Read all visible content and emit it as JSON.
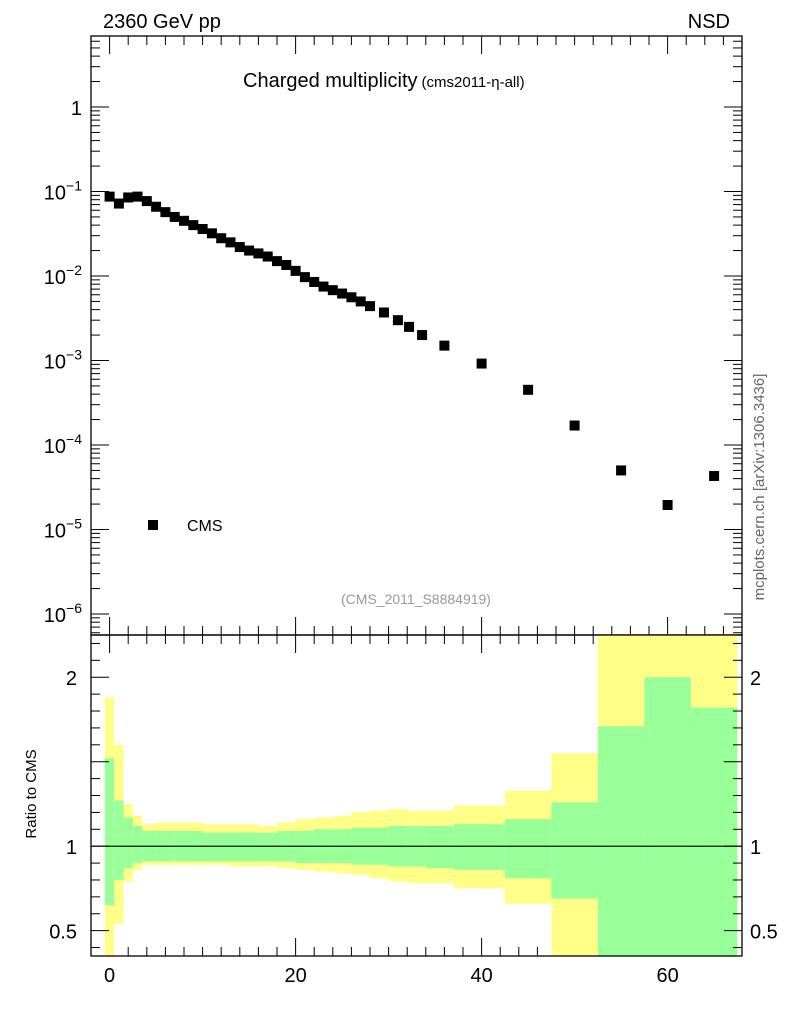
{
  "header": {
    "left": "2360 GeV pp",
    "right": "NSD"
  },
  "side_label": "mcplots.cern.ch [arXiv:1306.3436]",
  "chart_data": {
    "type": "scatter",
    "title": "Charged multiplicity",
    "subtitle": "(cms2011-η-all)",
    "watermark": "(CMS_2011_S8884919)",
    "legend": [
      {
        "label": "CMS",
        "marker": "square",
        "placement": "bottom-left"
      }
    ],
    "upper": {
      "yscale": "log",
      "ylim": [
        5e-07,
        6
      ],
      "xlim": [
        -2,
        68
      ],
      "ytick_labels": [
        "1",
        "10^{-1}",
        "10^{-2}",
        "10^{-3}",
        "10^{-4}",
        "10^{-5}",
        "10^{-6}"
      ],
      "series": [
        {
          "name": "CMS",
          "points": [
            [
              0,
              0.087
            ],
            [
              1,
              0.072
            ],
            [
              2,
              0.085
            ],
            [
              3,
              0.087
            ],
            [
              4,
              0.077
            ],
            [
              5,
              0.066
            ],
            [
              6,
              0.057
            ],
            [
              7,
              0.05
            ],
            [
              8,
              0.045
            ],
            [
              9,
              0.04
            ],
            [
              10,
              0.036
            ],
            [
              11,
              0.032
            ],
            [
              12,
              0.028
            ],
            [
              13,
              0.025
            ],
            [
              14,
              0.022
            ],
            [
              15,
              0.02
            ],
            [
              16,
              0.0185
            ],
            [
              17,
              0.017
            ],
            [
              18,
              0.015
            ],
            [
              19,
              0.0135
            ],
            [
              20,
              0.0115
            ],
            [
              21,
              0.0097
            ],
            [
              22,
              0.0085
            ],
            [
              23,
              0.0075
            ],
            [
              24,
              0.0068
            ],
            [
              25,
              0.0062
            ],
            [
              26,
              0.0056
            ],
            [
              27,
              0.005
            ],
            [
              28,
              0.0044
            ],
            [
              29.5,
              0.0037
            ],
            [
              31,
              0.003
            ],
            [
              32.2,
              0.0025
            ],
            [
              33.6,
              0.002
            ],
            [
              36,
              0.0015
            ],
            [
              40,
              0.00092
            ],
            [
              45,
              0.00045
            ],
            [
              50,
              0.00017
            ],
            [
              55,
              5e-05
            ],
            [
              60,
              1.95e-05
            ],
            [
              65,
              4.3e-05
            ]
          ]
        }
      ]
    },
    "ratio": {
      "ylabel": "Ratio to CMS",
      "ylim": [
        0.35,
        2.25
      ],
      "xlim": [
        -2,
        68
      ],
      "xlabel_ticks": [
        "0",
        "20",
        "40",
        "60"
      ],
      "ytick_labels": [
        "0.5",
        "1",
        "2"
      ],
      "reference": 1,
      "bins": [
        {
          "x0": -0.5,
          "x1": 0.5,
          "inner": [
            0.65,
            1.52
          ],
          "outer": [
            0.35,
            1.88
          ]
        },
        {
          "x0": 0.5,
          "x1": 1.5,
          "inner": [
            0.8,
            1.27
          ],
          "outer": [
            0.54,
            1.6
          ]
        },
        {
          "x0": 1.5,
          "x1": 2.5,
          "inner": [
            0.87,
            1.17
          ],
          "outer": [
            0.79,
            1.25
          ]
        },
        {
          "x0": 2.5,
          "x1": 3.5,
          "inner": [
            0.9,
            1.12
          ],
          "outer": [
            0.86,
            1.18
          ]
        },
        {
          "x0": 3.5,
          "x1": 5,
          "inner": [
            0.91,
            1.09
          ],
          "outer": [
            0.89,
            1.13
          ]
        },
        {
          "x0": 5,
          "x1": 7,
          "inner": [
            0.91,
            1.09
          ],
          "outer": [
            0.89,
            1.14
          ]
        },
        {
          "x0": 7,
          "x1": 10,
          "inner": [
            0.91,
            1.09
          ],
          "outer": [
            0.89,
            1.14
          ]
        },
        {
          "x0": 10,
          "x1": 13,
          "inner": [
            0.91,
            1.08
          ],
          "outer": [
            0.89,
            1.13
          ]
        },
        {
          "x0": 13,
          "x1": 16,
          "inner": [
            0.91,
            1.08
          ],
          "outer": [
            0.88,
            1.13
          ]
        },
        {
          "x0": 16,
          "x1": 18,
          "inner": [
            0.91,
            1.08
          ],
          "outer": [
            0.88,
            1.12
          ]
        },
        {
          "x0": 18,
          "x1": 20,
          "inner": [
            0.91,
            1.09
          ],
          "outer": [
            0.87,
            1.14
          ]
        },
        {
          "x0": 20,
          "x1": 22,
          "inner": [
            0.9,
            1.09
          ],
          "outer": [
            0.86,
            1.16
          ]
        },
        {
          "x0": 22,
          "x1": 24,
          "inner": [
            0.9,
            1.1
          ],
          "outer": [
            0.85,
            1.17
          ]
        },
        {
          "x0": 24,
          "x1": 26,
          "inner": [
            0.9,
            1.1
          ],
          "outer": [
            0.84,
            1.18
          ]
        },
        {
          "x0": 26,
          "x1": 28,
          "inner": [
            0.89,
            1.11
          ],
          "outer": [
            0.83,
            1.2
          ]
        },
        {
          "x0": 28,
          "x1": 30,
          "inner": [
            0.89,
            1.11
          ],
          "outer": [
            0.81,
            1.21
          ]
        },
        {
          "x0": 30,
          "x1": 32,
          "inner": [
            0.88,
            1.12
          ],
          "outer": [
            0.79,
            1.22
          ]
        },
        {
          "x0": 32,
          "x1": 34,
          "inner": [
            0.88,
            1.12
          ],
          "outer": [
            0.78,
            1.21
          ]
        },
        {
          "x0": 34,
          "x1": 37,
          "inner": [
            0.87,
            1.12
          ],
          "outer": [
            0.78,
            1.21
          ]
        },
        {
          "x0": 37,
          "x1": 42.5,
          "inner": [
            0.86,
            1.13
          ],
          "outer": [
            0.75,
            1.24
          ]
        },
        {
          "x0": 42.5,
          "x1": 47.5,
          "inner": [
            0.81,
            1.16
          ],
          "outer": [
            0.66,
            1.33
          ]
        },
        {
          "x0": 47.5,
          "x1": 52.5,
          "inner": [
            0.69,
            1.26
          ],
          "outer": [
            0.35,
            1.55
          ]
        },
        {
          "x0": 52.5,
          "x1": 57.5,
          "inner": [
            0.35,
            1.71
          ],
          "outer": [
            0.35,
            2.25
          ]
        },
        {
          "x0": 57.5,
          "x1": 62.5,
          "inner": [
            0.35,
            2.0
          ],
          "outer": [
            0.35,
            2.25
          ]
        },
        {
          "x0": 62.5,
          "x1": 67.5,
          "inner": [
            0.35,
            1.82
          ],
          "outer": [
            0.35,
            2.25
          ]
        }
      ]
    },
    "colors": {
      "inner_band": "#99ff99",
      "outer_band": "#ffff88",
      "marker": "#000000"
    }
  }
}
